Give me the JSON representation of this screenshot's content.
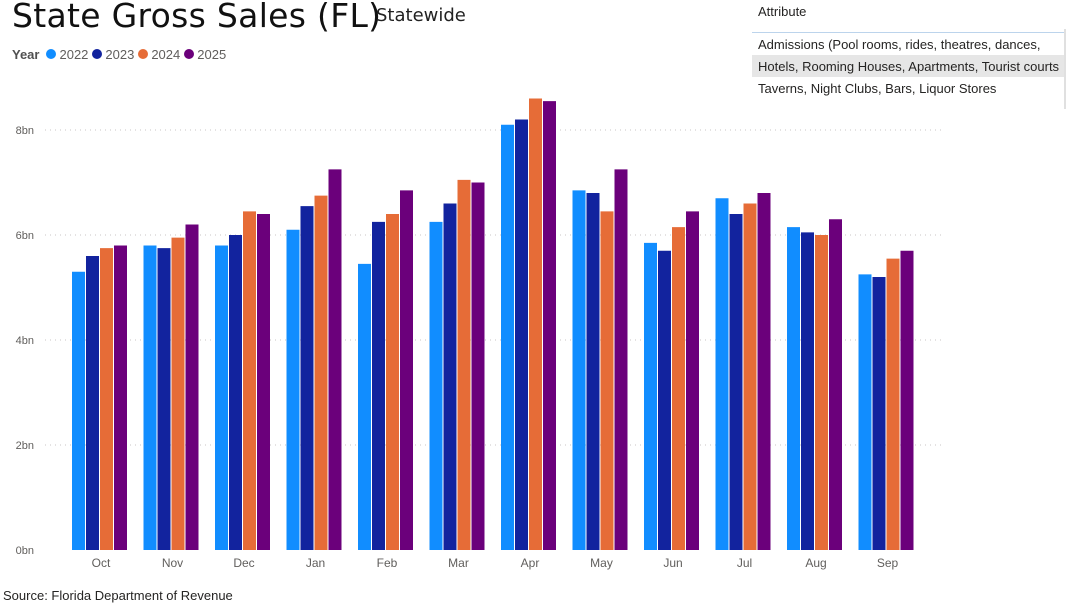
{
  "header": {
    "title": "State Gross Sales (FL)",
    "subtitle": "Statewide"
  },
  "legend": {
    "title": "Year",
    "items": [
      {
        "label": "2022",
        "color": "#118dff"
      },
      {
        "label": "2023",
        "color": "#12239e"
      },
      {
        "label": "2024",
        "color": "#e66c37"
      },
      {
        "label": "2025",
        "color": "#6b007b"
      }
    ]
  },
  "slicer": {
    "header": "Attribute",
    "items": [
      {
        "label": "Admissions (Pool rooms, rides, theatres, dances,"
      },
      {
        "label": "Hotels, Rooming Houses, Apartments, Tourist courts"
      },
      {
        "label": "Taverns, Night Clubs, Bars, Liquor Stores"
      }
    ]
  },
  "source": "Source: Florida Department of Revenue",
  "chart_data": {
    "type": "bar",
    "title": "State Gross Sales (FL)",
    "subtitle": "Statewide",
    "categories": [
      "Oct",
      "Nov",
      "Dec",
      "Jan",
      "Feb",
      "Mar",
      "Apr",
      "May",
      "Jun",
      "Jul",
      "Aug",
      "Sep"
    ],
    "series": [
      {
        "name": "2022",
        "color": "#118dff",
        "values": [
          5.3,
          5.8,
          5.8,
          6.1,
          5.45,
          6.25,
          8.1,
          6.85,
          5.85,
          6.7,
          6.15,
          5.25
        ]
      },
      {
        "name": "2023",
        "color": "#12239e",
        "values": [
          5.6,
          5.75,
          6.0,
          6.55,
          6.25,
          6.6,
          8.2,
          6.8,
          5.7,
          6.4,
          6.05,
          5.2
        ]
      },
      {
        "name": "2024",
        "color": "#e66c37",
        "values": [
          5.75,
          5.95,
          6.45,
          6.75,
          6.4,
          7.05,
          8.6,
          6.45,
          6.15,
          6.6,
          6.0,
          5.55
        ]
      },
      {
        "name": "2025",
        "color": "#6b007b",
        "values": [
          5.8,
          6.2,
          6.4,
          7.25,
          6.85,
          7.0,
          8.55,
          7.25,
          6.45,
          6.8,
          6.3,
          5.7
        ]
      }
    ],
    "yticks": [
      "0bn",
      "2bn",
      "4bn",
      "6bn",
      "8bn"
    ],
    "ylim": [
      0,
      8.6
    ],
    "xlabel": "",
    "ylabel": "",
    "grid": true,
    "legend_position": "top-left"
  }
}
